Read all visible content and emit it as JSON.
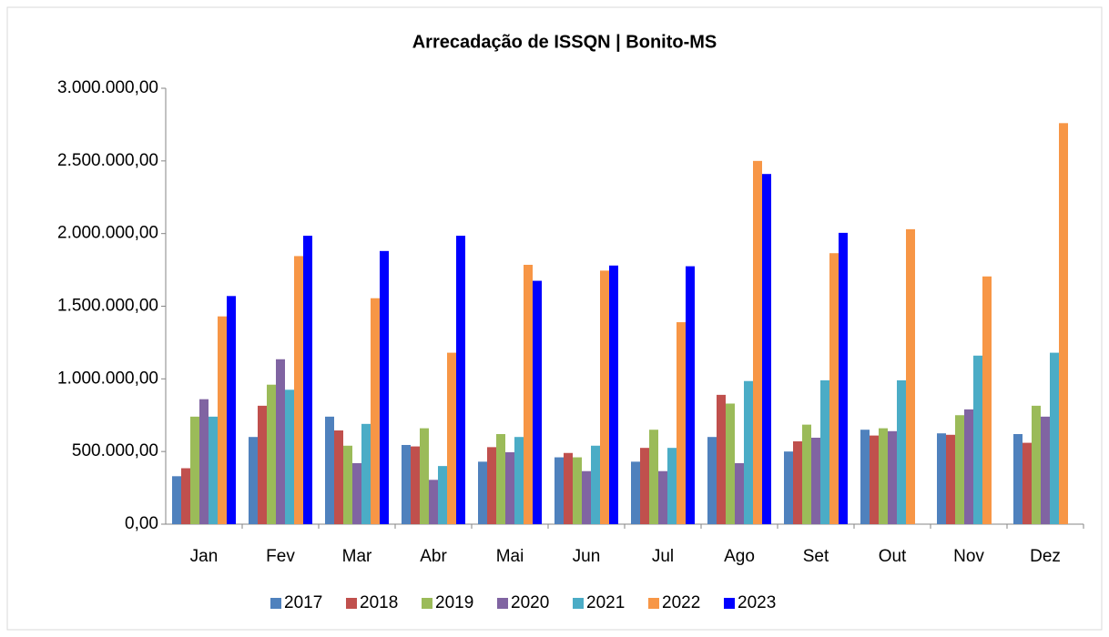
{
  "chart_data": {
    "type": "bar",
    "title": "Arrecadação de ISSQN | Bonito-MS",
    "categories": [
      "Jan",
      "Fev",
      "Mar",
      "Abr",
      "Mai",
      "Jun",
      "Jul",
      "Ago",
      "Set",
      "Out",
      "Nov",
      "Dez"
    ],
    "series": [
      {
        "name": "2017",
        "color": "#4f81bd",
        "values": [
          330000,
          600000,
          740000,
          545000,
          430000,
          460000,
          430000,
          600000,
          500000,
          650000,
          625000,
          620000
        ]
      },
      {
        "name": "2018",
        "color": "#c0504d",
        "values": [
          385000,
          815000,
          645000,
          535000,
          530000,
          490000,
          525000,
          890000,
          570000,
          610000,
          615000,
          560000
        ]
      },
      {
        "name": "2019",
        "color": "#9bbb59",
        "values": [
          740000,
          960000,
          540000,
          660000,
          620000,
          460000,
          650000,
          830000,
          685000,
          660000,
          750000,
          815000
        ]
      },
      {
        "name": "2020",
        "color": "#8064a2",
        "values": [
          860000,
          1135000,
          420000,
          305000,
          495000,
          365000,
          365000,
          420000,
          595000,
          640000,
          790000,
          740000
        ]
      },
      {
        "name": "2021",
        "color": "#4bacc6",
        "values": [
          740000,
          925000,
          690000,
          400000,
          600000,
          540000,
          525000,
          985000,
          990000,
          990000,
          1160000,
          1180000
        ]
      },
      {
        "name": "2022",
        "color": "#f79646",
        "values": [
          1430000,
          1845000,
          1555000,
          1180000,
          1785000,
          1745000,
          1390000,
          2500000,
          1865000,
          2030000,
          1705000,
          2760000
        ]
      },
      {
        "name": "2023",
        "color": "#0000ff",
        "values": [
          1570000,
          1985000,
          1880000,
          1985000,
          1675000,
          1780000,
          1775000,
          2410000,
          2005000,
          null,
          null,
          null
        ]
      }
    ],
    "ylim": [
      0,
      3000000
    ],
    "yticks": [
      {
        "value": 0,
        "label": "0,00"
      },
      {
        "value": 500000,
        "label": "500.000,00"
      },
      {
        "value": 1000000,
        "label": "1.000.000,00"
      },
      {
        "value": 1500000,
        "label": "1.500.000,00"
      },
      {
        "value": 2000000,
        "label": "2.000.000,00"
      },
      {
        "value": 2500000,
        "label": "2.500.000,00"
      },
      {
        "value": 3000000,
        "label": "3.000.000,00"
      }
    ],
    "grid": false,
    "legend": "bottom"
  }
}
